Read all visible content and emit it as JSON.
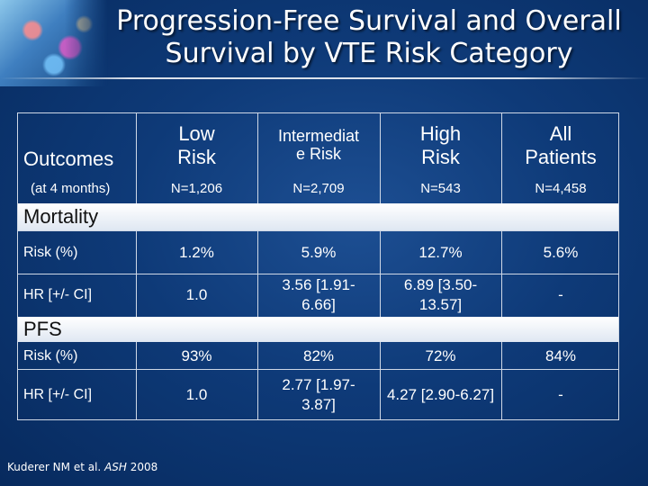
{
  "title": {
    "line1": "Progression-Free Survival and Overall",
    "line2": "Survival by VTE Risk Category"
  },
  "logo_icon": "medical-collage-icon",
  "table": {
    "header_label": "Outcomes",
    "header_sublabel": "(at 4 months)",
    "columns": [
      {
        "line1": "Low",
        "line2": "Risk",
        "n": "N=1,206"
      },
      {
        "line1": "Intermediat",
        "line2": "e Risk",
        "n": "N=2,709"
      },
      {
        "line1": "High",
        "line2": "Risk",
        "n": "N=543"
      },
      {
        "line1": "All",
        "line2": "Patients",
        "n": "N=4,458"
      }
    ],
    "sections": [
      {
        "name": "Mortality",
        "rows": [
          {
            "label": "Risk (%)",
            "cells": [
              [
                "1.2%"
              ],
              [
                "5.9%"
              ],
              [
                "12.7%"
              ],
              [
                "5.6%"
              ]
            ]
          },
          {
            "label": "HR [+/- CI]",
            "cells": [
              [
                "1.0"
              ],
              [
                "3.56 [1.91-",
                "6.66]"
              ],
              [
                "6.89 [3.50-",
                "13.57]"
              ],
              [
                "-"
              ]
            ]
          }
        ]
      },
      {
        "name": "PFS",
        "rows": [
          {
            "label": "Risk (%)",
            "cells": [
              [
                "93%"
              ],
              [
                "82%"
              ],
              [
                "72%"
              ],
              [
                "84%"
              ]
            ]
          },
          {
            "label": "HR [+/- CI]",
            "cells": [
              [
                "1.0"
              ],
              [
                "2.77 [1.97-",
                "3.87]"
              ],
              [
                "4.27 [2.90-6.27]"
              ],
              [
                "-"
              ]
            ]
          }
        ]
      }
    ]
  },
  "citation": {
    "authors": "Kuderer NM et al.",
    "journal": "ASH",
    "year": "2008"
  },
  "colors": {
    "background": "#0e3a78",
    "band": "#dfe7f2",
    "grid": "#cfd8e6"
  }
}
